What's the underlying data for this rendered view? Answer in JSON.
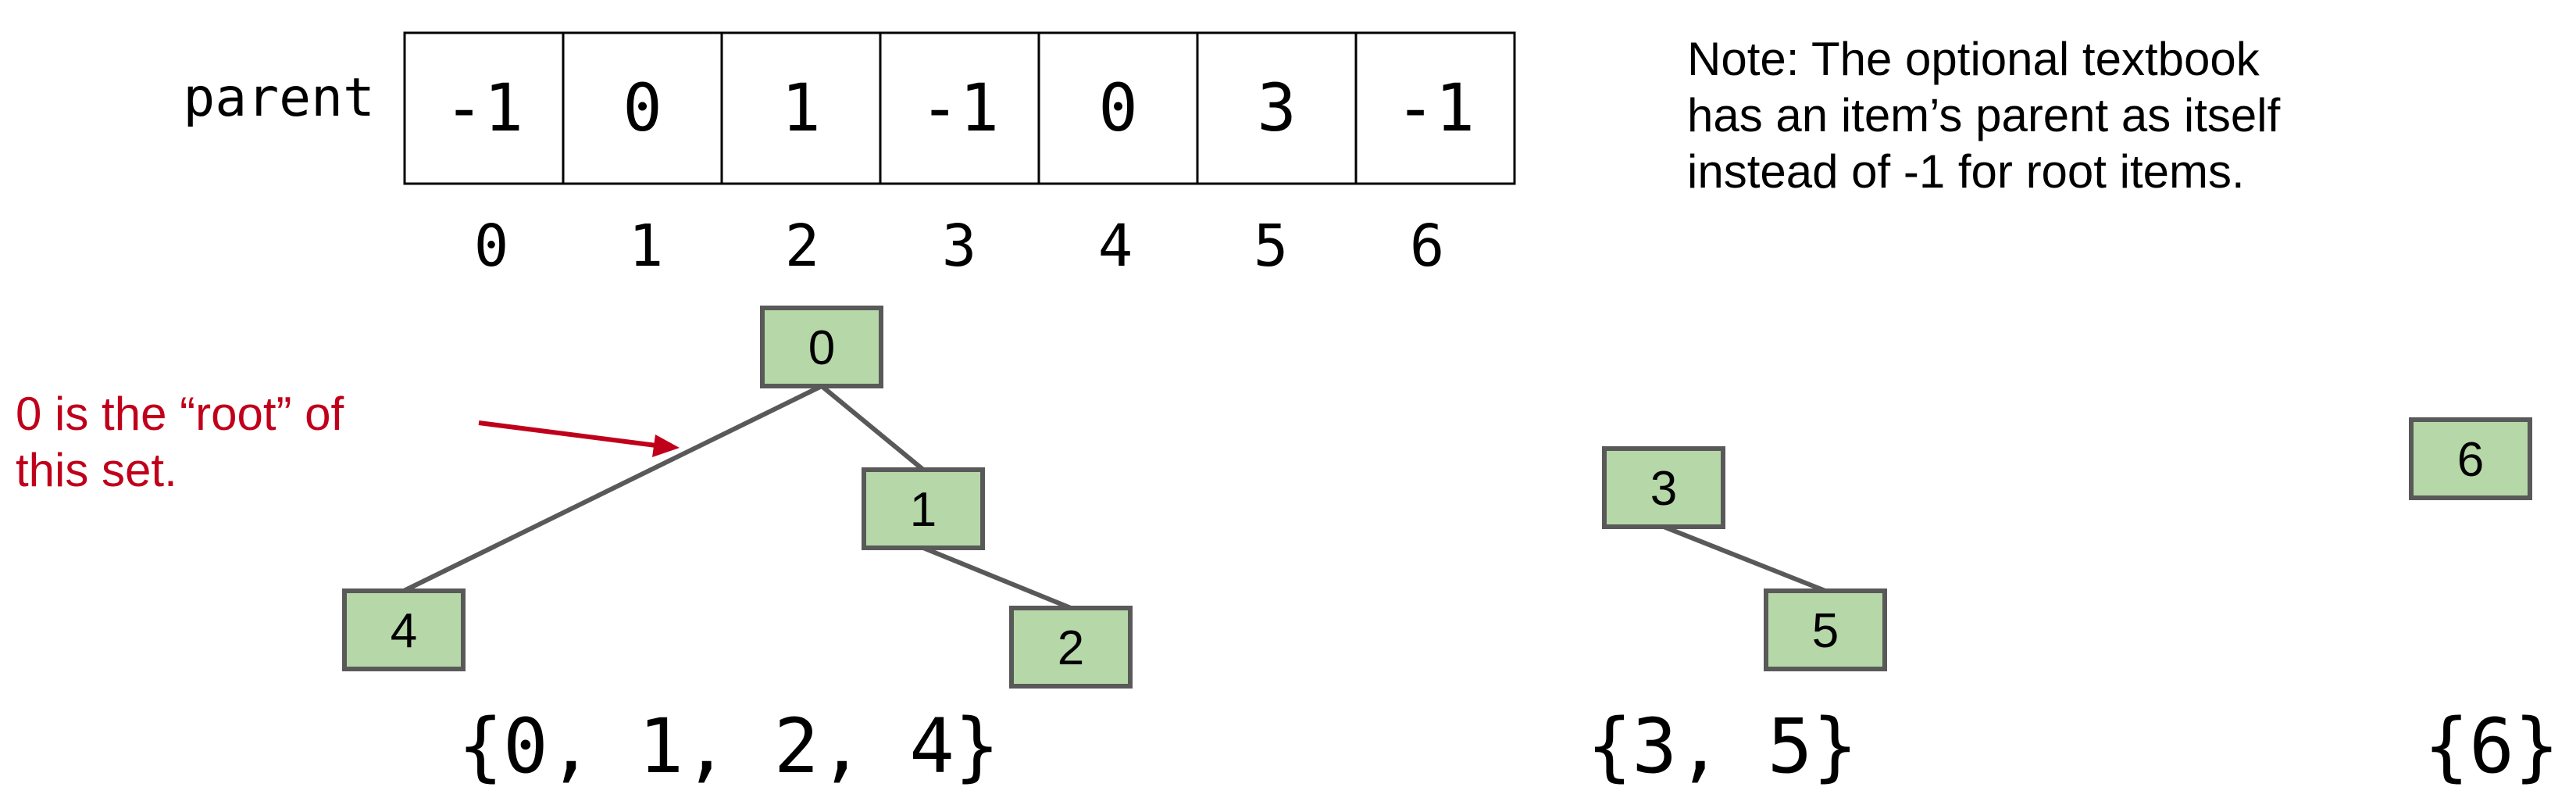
{
  "array": {
    "label": "parent",
    "cells": [
      "-1",
      "0",
      "1",
      "-1",
      "0",
      "3",
      "-1"
    ],
    "indices": [
      "0",
      "1",
      "2",
      "3",
      "4",
      "5",
      "6"
    ]
  },
  "note": {
    "lines": [
      "Note: The optional textbook",
      "has an item’s parent as itself",
      "instead of -1 for root items."
    ]
  },
  "annotation": {
    "lines": [
      "0 is the “root” of",
      "this set."
    ],
    "color": "#c0001b"
  },
  "nodes": [
    {
      "id": "0",
      "label": "0"
    },
    {
      "id": "1",
      "label": "1"
    },
    {
      "id": "2",
      "label": "2"
    },
    {
      "id": "3",
      "label": "3"
    },
    {
      "id": "4",
      "label": "4"
    },
    {
      "id": "5",
      "label": "5"
    },
    {
      "id": "6",
      "label": "6"
    }
  ],
  "edges": [
    {
      "from": "0",
      "to": "4"
    },
    {
      "from": "0",
      "to": "1"
    },
    {
      "from": "1",
      "to": "2"
    },
    {
      "from": "3",
      "to": "5"
    }
  ],
  "sets": [
    "{0, 1, 2, 4}",
    "{3, 5}",
    "{6}"
  ],
  "colors": {
    "node_fill": "#b6d7a8",
    "node_stroke": "#595959",
    "edge": "#595959",
    "text": "#000000"
  }
}
